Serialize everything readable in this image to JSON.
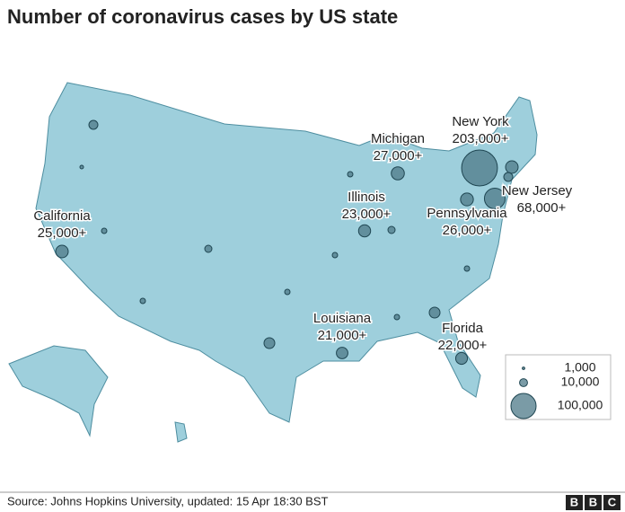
{
  "title": "Number of coronavirus cases by US state",
  "states": [
    {
      "name": "New York",
      "label": "203,000+",
      "value": 203000
    },
    {
      "name": "New Jersey",
      "label": "68,000+",
      "value": 68000
    },
    {
      "name": "Michigan",
      "label": "27,000+",
      "value": 27000
    },
    {
      "name": "Illinois",
      "label": "23,000+",
      "value": 23000
    },
    {
      "name": "Pennsylvania",
      "label": "26,000+",
      "value": 26000
    },
    {
      "name": "California",
      "label": "25,000+",
      "value": 25000
    },
    {
      "name": "Louisiana",
      "label": "21,000+",
      "value": 21000
    },
    {
      "name": "Florida",
      "label": "22,000+",
      "value": 22000
    }
  ],
  "legend": [
    {
      "value": 1000,
      "label": "1,000"
    },
    {
      "value": 10000,
      "label": "10,000"
    },
    {
      "value": 100000,
      "label": "100,000"
    }
  ],
  "source": "Source: Johns Hopkins University, updated: 15 Apr 18:30 BST",
  "logo": "BBC"
}
